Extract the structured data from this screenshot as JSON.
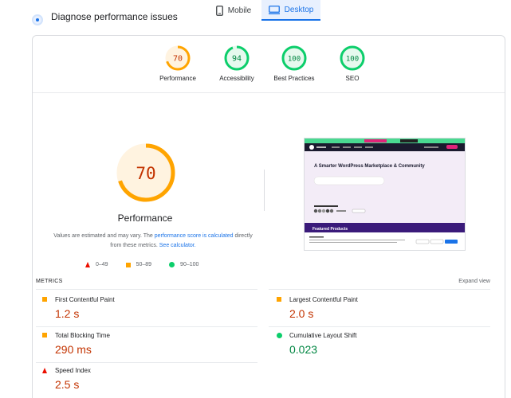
{
  "header": {
    "diagnose_text": "Diagnose performance issues"
  },
  "device_tabs": [
    {
      "label": "Mobile",
      "active": false,
      "icon": "phone-icon"
    },
    {
      "label": "Desktop",
      "active": true,
      "icon": "desktop-icon"
    }
  ],
  "categories": [
    {
      "label": "Performance",
      "score": "70",
      "score_pct": 70,
      "rating": "average"
    },
    {
      "label": "Accessibility",
      "score": "94",
      "score_pct": 94,
      "rating": "pass"
    },
    {
      "label": "Best Practices",
      "score": "100",
      "score_pct": 100,
      "rating": "pass"
    },
    {
      "label": "SEO",
      "score": "100",
      "score_pct": 100,
      "rating": "pass"
    }
  ],
  "performance": {
    "score": "70",
    "score_pct": 70,
    "title": "Performance",
    "note_prefix": "Values are estimated and may vary. The ",
    "note_link1": "performance score is calculated",
    "note_middle": " directly from these metrics. ",
    "note_link2": "See calculator.",
    "legend": [
      {
        "range": "0–49",
        "shape": "triangle",
        "color": "#eb0f00"
      },
      {
        "range": "50–89",
        "shape": "square",
        "color": "#ffa400"
      },
      {
        "range": "90–100",
        "shape": "circle",
        "color": "#0cce6b"
      }
    ]
  },
  "screenshot": {
    "headline": "A Smarter WordPress Marketplace & Community",
    "section": "Featured Products"
  },
  "metrics": {
    "heading": "METRICS",
    "expand_label": "Expand view",
    "items": [
      {
        "name": "First Contentful Paint",
        "value": "1.2 s",
        "rating": "average"
      },
      {
        "name": "Largest Contentful Paint",
        "value": "2.0 s",
        "rating": "average"
      },
      {
        "name": "Total Blocking Time",
        "value": "290 ms",
        "rating": "average"
      },
      {
        "name": "Cumulative Layout Shift",
        "value": "0.023",
        "rating": "pass"
      },
      {
        "name": "Speed Index",
        "value": "2.5 s",
        "rating": "fail"
      }
    ]
  },
  "colors": {
    "average": "#ffa400",
    "pass": "#0cce6b",
    "fail": "#eb0f00",
    "link": "#1a73e8"
  }
}
